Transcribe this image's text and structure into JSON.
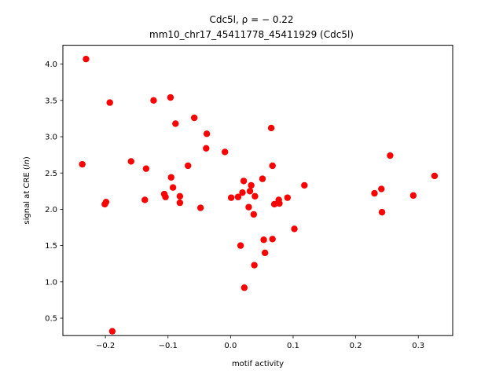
{
  "chart_data": {
    "type": "scatter",
    "title_line1": "Cdc5l, ρ = − 0.22",
    "title_line2": "mm10_chr17_45411778_45411929 (Cdc5l)",
    "xlabel": "motif activity",
    "ylabel_prefix": "signal at CRE (",
    "ylabel_italic": "ln",
    "ylabel_suffix": ")",
    "xlim": [
      -0.268,
      0.355
    ],
    "ylim": [
      0.26,
      4.26
    ],
    "x_ticks": [
      {
        "value": -0.2,
        "label": "−0.2"
      },
      {
        "value": -0.1,
        "label": "−0.1"
      },
      {
        "value": 0.0,
        "label": "0.0"
      },
      {
        "value": 0.1,
        "label": "0.1"
      },
      {
        "value": 0.2,
        "label": "0.2"
      },
      {
        "value": 0.3,
        "label": "0.3"
      }
    ],
    "y_ticks": [
      {
        "value": 0.5,
        "label": "0.5"
      },
      {
        "value": 1.0,
        "label": "1.0"
      },
      {
        "value": 1.5,
        "label": "1.5"
      },
      {
        "value": 2.0,
        "label": "2.0"
      },
      {
        "value": 2.5,
        "label": "2.5"
      },
      {
        "value": 3.0,
        "label": "3.0"
      },
      {
        "value": 3.5,
        "label": "3.5"
      },
      {
        "value": 4.0,
        "label": "4.0"
      }
    ],
    "grid": false,
    "point_color": "#ff0000",
    "points": [
      {
        "x": -0.231,
        "y": 4.07
      },
      {
        "x": -0.237,
        "y": 2.62
      },
      {
        "x": -0.199,
        "y": 2.1
      },
      {
        "x": -0.201,
        "y": 2.07
      },
      {
        "x": -0.193,
        "y": 3.47
      },
      {
        "x": -0.189,
        "y": 0.32
      },
      {
        "x": -0.159,
        "y": 2.66
      },
      {
        "x": -0.135,
        "y": 2.56
      },
      {
        "x": -0.137,
        "y": 2.13
      },
      {
        "x": -0.123,
        "y": 3.5
      },
      {
        "x": -0.106,
        "y": 2.21
      },
      {
        "x": -0.104,
        "y": 2.17
      },
      {
        "x": -0.096,
        "y": 3.54
      },
      {
        "x": -0.095,
        "y": 2.44
      },
      {
        "x": -0.092,
        "y": 2.3
      },
      {
        "x": -0.088,
        "y": 3.18
      },
      {
        "x": -0.081,
        "y": 2.18
      },
      {
        "x": -0.081,
        "y": 2.09
      },
      {
        "x": -0.068,
        "y": 2.6
      },
      {
        "x": -0.058,
        "y": 3.26
      },
      {
        "x": -0.048,
        "y": 2.02
      },
      {
        "x": -0.038,
        "y": 3.04
      },
      {
        "x": -0.039,
        "y": 2.84
      },
      {
        "x": -0.009,
        "y": 2.79
      },
      {
        "x": 0.001,
        "y": 2.16
      },
      {
        "x": 0.012,
        "y": 2.17
      },
      {
        "x": 0.016,
        "y": 1.5
      },
      {
        "x": 0.019,
        "y": 2.23
      },
      {
        "x": 0.021,
        "y": 2.39
      },
      {
        "x": 0.022,
        "y": 0.92
      },
      {
        "x": 0.029,
        "y": 2.03
      },
      {
        "x": 0.031,
        "y": 2.25
      },
      {
        "x": 0.033,
        "y": 2.33
      },
      {
        "x": 0.037,
        "y": 1.93
      },
      {
        "x": 0.039,
        "y": 2.18
      },
      {
        "x": 0.038,
        "y": 1.23
      },
      {
        "x": 0.051,
        "y": 2.42
      },
      {
        "x": 0.053,
        "y": 1.58
      },
      {
        "x": 0.055,
        "y": 1.4
      },
      {
        "x": 0.065,
        "y": 3.12
      },
      {
        "x": 0.067,
        "y": 2.6
      },
      {
        "x": 0.067,
        "y": 1.59
      },
      {
        "x": 0.07,
        "y": 2.07
      },
      {
        "x": 0.077,
        "y": 2.13
      },
      {
        "x": 0.078,
        "y": 2.08
      },
      {
        "x": 0.091,
        "y": 2.16
      },
      {
        "x": 0.102,
        "y": 1.73
      },
      {
        "x": 0.118,
        "y": 2.33
      },
      {
        "x": 0.23,
        "y": 2.22
      },
      {
        "x": 0.241,
        "y": 2.28
      },
      {
        "x": 0.242,
        "y": 1.96
      },
      {
        "x": 0.255,
        "y": 2.74
      },
      {
        "x": 0.292,
        "y": 2.19
      },
      {
        "x": 0.326,
        "y": 2.46
      }
    ]
  }
}
